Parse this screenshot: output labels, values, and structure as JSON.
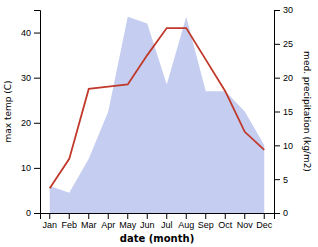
{
  "chart_data": {
    "type": "line",
    "categories": [
      "Jan",
      "Feb",
      "Mar",
      "Apr",
      "May",
      "Jun",
      "Jul",
      "Aug",
      "Sep",
      "Oct",
      "Nov",
      "Dec"
    ],
    "series": [
      {
        "type": "area",
        "axis": "y2",
        "color": "#c5cdf0",
        "values": [
          4.0,
          3.0,
          8.0,
          15.0,
          29.0,
          28.0,
          19.0,
          29.0,
          18.0,
          18.0,
          15.0,
          10.0
        ]
      },
      {
        "type": "line",
        "color": "#c0392b",
        "values": [
          5.5,
          12.0,
          27.5,
          28.0,
          28.5,
          35.0,
          41.0,
          41.0,
          34.0,
          27.0,
          18.0,
          14.0
        ]
      }
    ],
    "xlabel": "date (month)",
    "ylabel": "max temp (C)",
    "y2label": "med. precipitation (kg/m2)",
    "ylim": [
      0,
      45
    ],
    "yticks": [
      0,
      10,
      20,
      30,
      40
    ],
    "y2lim": [
      0,
      30
    ],
    "y2ticks": [
      0,
      5,
      10,
      15,
      20,
      25,
      30
    ]
  }
}
